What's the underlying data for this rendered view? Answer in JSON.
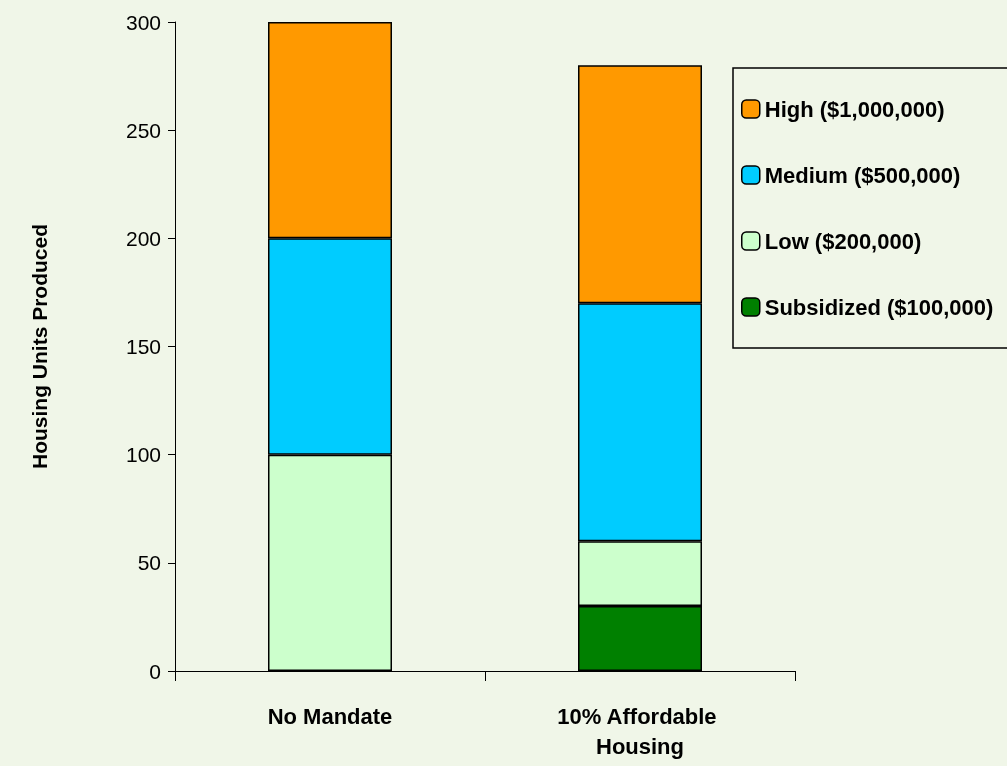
{
  "chart_data": {
    "type": "bar",
    "stacked": true,
    "categories": [
      "No Mandate",
      "10% Affordable Housing"
    ],
    "ylabel": "Housing Units Produced",
    "ylim": [
      0,
      300
    ],
    "yticks": [
      0,
      50,
      100,
      150,
      200,
      250,
      300
    ],
    "grid": false,
    "legend": "right",
    "series": [
      {
        "name": "Subsidized ($100,000)",
        "color": "#008000",
        "values": [
          0,
          30
        ]
      },
      {
        "name": "Low ($200,000)",
        "color": "#ccffcc",
        "values": [
          100,
          30
        ]
      },
      {
        "name": "Medium ($500,000)",
        "color": "#00ccff",
        "values": [
          100,
          110
        ]
      },
      {
        "name": "High ($1,000,000)",
        "color": "#ff9900",
        "values": [
          100,
          110
        ]
      }
    ]
  }
}
